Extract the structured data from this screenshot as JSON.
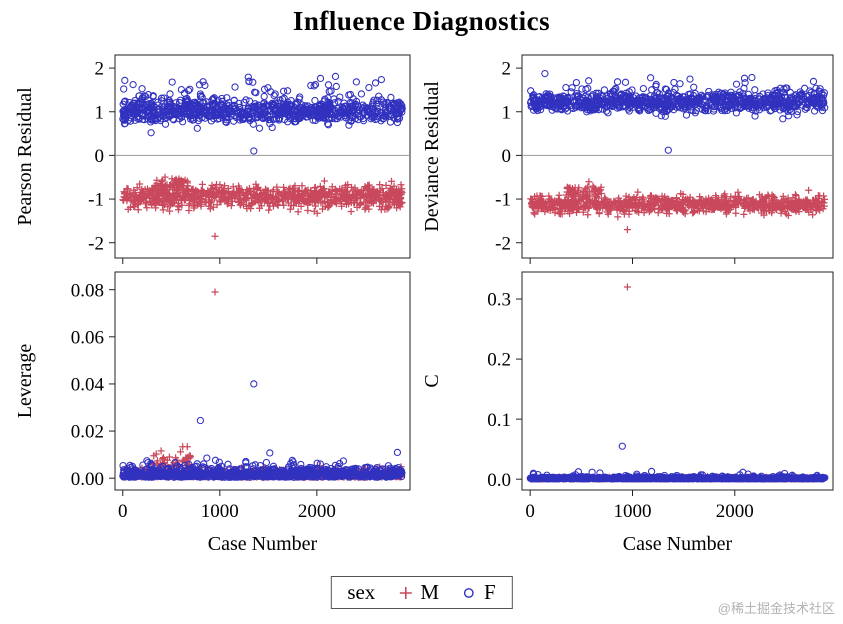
{
  "title": "Influence Diagnostics",
  "watermark": "@稀土掘金技术社区",
  "colors": {
    "M": "#C9485B",
    "F": "#3131C0"
  },
  "legend": {
    "label": "sex",
    "items": [
      {
        "marker": "plus",
        "label": "M"
      },
      {
        "marker": "circle",
        "label": "F"
      }
    ]
  },
  "chart_data": [
    {
      "id": "pearson",
      "type": "scatter",
      "ylabel": "Pearson Residual",
      "xlabel": "",
      "x": {
        "lim": [
          -80,
          2960
        ],
        "ticks": [
          0,
          1000,
          2000
        ],
        "tick_labels": [
          "0",
          "1000",
          "2000"
        ]
      },
      "ylim": [
        -2.35,
        2.3
      ],
      "yticks": [
        -2,
        -1,
        0,
        1,
        2
      ],
      "ytick_labels": [
        "-2",
        "-1",
        "0",
        "1",
        "2"
      ],
      "zero_line": true,
      "show_x_ticklabels": false,
      "series": [
        {
          "name": "M",
          "marker": "plus",
          "clusters": [
            {
              "n": 900,
              "x": [
                0,
                2880
              ],
              "mean": -0.95,
              "sd": 0.13,
              "dist": "normal"
            },
            {
              "n": 60,
              "x": [
                330,
                700
              ],
              "mean": -0.66,
              "sd": 0.1,
              "dist": "normal"
            }
          ],
          "outliers": [
            [
              950,
              -1.85
            ]
          ]
        },
        {
          "name": "F",
          "marker": "circle",
          "clusters": [
            {
              "n": 900,
              "x": [
                0,
                2880
              ],
              "mean": 1.02,
              "sd": 0.13,
              "dist": "normal"
            },
            {
              "n": 40,
              "x": [
                0,
                2880
              ],
              "mean": 1.55,
              "sd": 0.15,
              "dist": "normal"
            }
          ],
          "outliers": [
            [
              1350,
              0.1
            ]
          ]
        }
      ]
    },
    {
      "id": "deviance",
      "type": "scatter",
      "ylabel": "Deviance Residual",
      "xlabel": "",
      "x": {
        "lim": [
          -80,
          2960
        ],
        "ticks": [
          0,
          1000,
          2000
        ],
        "tick_labels": [
          "0",
          "1000",
          "2000"
        ]
      },
      "ylim": [
        -2.35,
        2.3
      ],
      "yticks": [
        -2,
        -1,
        0,
        1,
        2
      ],
      "ytick_labels": [
        "-2",
        "-1",
        "0",
        "1",
        "2"
      ],
      "zero_line": true,
      "show_x_ticklabels": false,
      "series": [
        {
          "name": "M",
          "marker": "plus",
          "clusters": [
            {
              "n": 900,
              "x": [
                0,
                2880
              ],
              "mean": -1.12,
              "sd": 0.1,
              "dist": "normal"
            },
            {
              "n": 55,
              "x": [
                330,
                700
              ],
              "mean": -0.82,
              "sd": 0.09,
              "dist": "normal"
            }
          ],
          "outliers": [
            [
              950,
              -1.7
            ]
          ]
        },
        {
          "name": "F",
          "marker": "circle",
          "clusters": [
            {
              "n": 900,
              "x": [
                0,
                2880
              ],
              "mean": 1.22,
              "sd": 0.11,
              "dist": "normal"
            },
            {
              "n": 40,
              "x": [
                0,
                2880
              ],
              "mean": 1.55,
              "sd": 0.12,
              "dist": "normal"
            }
          ],
          "outliers": [
            [
              1350,
              0.12
            ]
          ]
        }
      ]
    },
    {
      "id": "leverage",
      "type": "scatter",
      "ylabel": "Leverage",
      "xlabel": "Case Number",
      "x": {
        "lim": [
          -80,
          2960
        ],
        "ticks": [
          0,
          1000,
          2000
        ],
        "tick_labels": [
          "0",
          "1000",
          "2000"
        ]
      },
      "ylim": [
        -0.005,
        0.0875
      ],
      "yticks": [
        0,
        0.02,
        0.04,
        0.06,
        0.08
      ],
      "ytick_labels": [
        "0.00",
        "0.02",
        "0.04",
        "0.06",
        "0.08"
      ],
      "zero_line": false,
      "show_x_ticklabels": true,
      "series": [
        {
          "name": "M",
          "marker": "plus",
          "clusters": [
            {
              "n": 850,
              "x": [
                0,
                2880
              ],
              "mean": 0.0004,
              "sd": 0.0016,
              "dist": "halfnormal"
            },
            {
              "n": 50,
              "x": [
                300,
                700
              ],
              "mean": 0.005,
              "sd": 0.0035,
              "dist": "halfnormal"
            }
          ],
          "outliers": [
            [
              950,
              0.079
            ]
          ]
        },
        {
          "name": "F",
          "marker": "circle",
          "clusters": [
            {
              "n": 850,
              "x": [
                0,
                2880
              ],
              "mean": 0.0004,
              "sd": 0.0018,
              "dist": "halfnormal"
            },
            {
              "n": 70,
              "x": [
                0,
                2880
              ],
              "mean": 0.0025,
              "sd": 0.003,
              "dist": "halfnormal"
            }
          ],
          "outliers": [
            [
              1350,
              0.04
            ],
            [
              800,
              0.0245
            ]
          ]
        }
      ]
    },
    {
      "id": "c",
      "type": "scatter",
      "ylabel": "C",
      "xlabel": "Case Number",
      "x": {
        "lim": [
          -80,
          2960
        ],
        "ticks": [
          0,
          1000,
          2000
        ],
        "tick_labels": [
          "0",
          "1000",
          "2000"
        ]
      },
      "ylim": [
        -0.018,
        0.345
      ],
      "yticks": [
        0,
        0.1,
        0.2,
        0.3
      ],
      "ytick_labels": [
        "0.0",
        "0.1",
        "0.2",
        "0.3"
      ],
      "zero_line": false,
      "show_x_ticklabels": true,
      "series": [
        {
          "name": "M",
          "marker": "plus",
          "clusters": [
            {
              "n": 850,
              "x": [
                0,
                2880
              ],
              "mean": 0.0003,
              "sd": 0.0012,
              "dist": "halfnormal"
            }
          ],
          "outliers": [
            [
              950,
              0.32
            ]
          ]
        },
        {
          "name": "F",
          "marker": "circle",
          "clusters": [
            {
              "n": 850,
              "x": [
                0,
                2880
              ],
              "mean": 0.0004,
              "sd": 0.0015,
              "dist": "halfnormal"
            },
            {
              "n": 35,
              "x": [
                0,
                2880
              ],
              "mean": 0.004,
              "sd": 0.004,
              "dist": "halfnormal"
            }
          ],
          "outliers": [
            [
              900,
              0.055
            ]
          ]
        }
      ]
    }
  ]
}
